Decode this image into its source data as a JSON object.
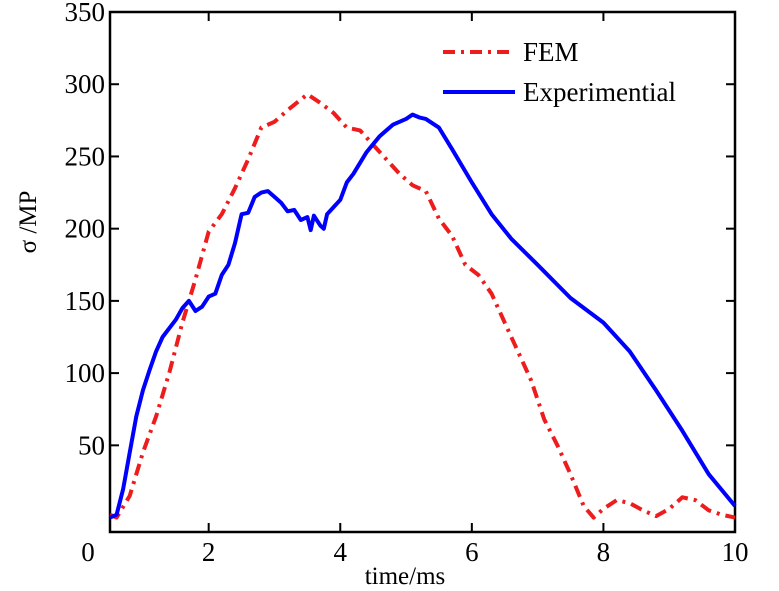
{
  "chart_data": {
    "type": "line",
    "xlabel": "time/ms",
    "ylabel": "σ /MP",
    "xlim": [
      0.5,
      10
    ],
    "ylim": [
      -10,
      350
    ],
    "x_ticks": [
      0,
      2,
      4,
      6,
      8,
      10
    ],
    "x_tick_labels": [
      "0",
      "2",
      "4",
      "6",
      "8",
      "10"
    ],
    "y_ticks": [
      50,
      100,
      150,
      200,
      250,
      300,
      350
    ],
    "y_tick_labels": [
      "50",
      "100",
      "150",
      "200",
      "250",
      "300",
      "350"
    ],
    "grid": false,
    "legend_position": "top-right",
    "series": [
      {
        "name": "FEM",
        "color": "#ee1c1c",
        "style": "dashdot",
        "points": [
          [
            0.5,
            2
          ],
          [
            0.6,
            0
          ],
          [
            0.8,
            15
          ],
          [
            1.0,
            45
          ],
          [
            1.2,
            70
          ],
          [
            1.4,
            100
          ],
          [
            1.6,
            135
          ],
          [
            1.8,
            165
          ],
          [
            2.0,
            198
          ],
          [
            2.2,
            210
          ],
          [
            2.4,
            228
          ],
          [
            2.6,
            248
          ],
          [
            2.8,
            270
          ],
          [
            3.0,
            274
          ],
          [
            3.2,
            282
          ],
          [
            3.5,
            293
          ],
          [
            3.7,
            287
          ],
          [
            3.9,
            280
          ],
          [
            4.1,
            270
          ],
          [
            4.3,
            268
          ],
          [
            4.5,
            258
          ],
          [
            4.7,
            248
          ],
          [
            4.9,
            238
          ],
          [
            5.1,
            230
          ],
          [
            5.3,
            226
          ],
          [
            5.5,
            207
          ],
          [
            5.7,
            195
          ],
          [
            5.9,
            175
          ],
          [
            6.1,
            168
          ],
          [
            6.3,
            155
          ],
          [
            6.5,
            135
          ],
          [
            6.7,
            115
          ],
          [
            6.9,
            95
          ],
          [
            7.1,
            68
          ],
          [
            7.3,
            50
          ],
          [
            7.5,
            30
          ],
          [
            7.7,
            8
          ],
          [
            7.85,
            0
          ],
          [
            8.0,
            6
          ],
          [
            8.2,
            12
          ],
          [
            8.4,
            10
          ],
          [
            8.6,
            5
          ],
          [
            8.8,
            1
          ],
          [
            9.0,
            6
          ],
          [
            9.2,
            14
          ],
          [
            9.4,
            12
          ],
          [
            9.6,
            5
          ],
          [
            9.8,
            2
          ],
          [
            10.0,
            0
          ]
        ]
      },
      {
        "name": "Experimential",
        "color": "#0000ff",
        "style": "solid",
        "points": [
          [
            0.5,
            0
          ],
          [
            0.6,
            2
          ],
          [
            0.7,
            20
          ],
          [
            0.8,
            45
          ],
          [
            0.9,
            70
          ],
          [
            1.0,
            88
          ],
          [
            1.1,
            102
          ],
          [
            1.2,
            115
          ],
          [
            1.3,
            125
          ],
          [
            1.5,
            137
          ],
          [
            1.6,
            145
          ],
          [
            1.7,
            150
          ],
          [
            1.8,
            143
          ],
          [
            1.9,
            146
          ],
          [
            2.0,
            153
          ],
          [
            2.1,
            155
          ],
          [
            2.2,
            168
          ],
          [
            2.3,
            175
          ],
          [
            2.4,
            190
          ],
          [
            2.5,
            210
          ],
          [
            2.6,
            211
          ],
          [
            2.7,
            222
          ],
          [
            2.8,
            225
          ],
          [
            2.9,
            226
          ],
          [
            3.0,
            222
          ],
          [
            3.1,
            218
          ],
          [
            3.2,
            212
          ],
          [
            3.3,
            213
          ],
          [
            3.4,
            206
          ],
          [
            3.5,
            208
          ],
          [
            3.55,
            199
          ],
          [
            3.6,
            209
          ],
          [
            3.7,
            202
          ],
          [
            3.75,
            200
          ],
          [
            3.8,
            210
          ],
          [
            3.9,
            215
          ],
          [
            4.0,
            220
          ],
          [
            4.1,
            232
          ],
          [
            4.2,
            238
          ],
          [
            4.4,
            253
          ],
          [
            4.6,
            264
          ],
          [
            4.8,
            272
          ],
          [
            5.0,
            276
          ],
          [
            5.1,
            279
          ],
          [
            5.2,
            277
          ],
          [
            5.3,
            276
          ],
          [
            5.5,
            270
          ],
          [
            5.7,
            255
          ],
          [
            6.0,
            232
          ],
          [
            6.3,
            210
          ],
          [
            6.6,
            193
          ],
          [
            7.0,
            175
          ],
          [
            7.5,
            152
          ],
          [
            8.0,
            135
          ],
          [
            8.4,
            115
          ],
          [
            8.8,
            88
          ],
          [
            9.2,
            60
          ],
          [
            9.6,
            30
          ],
          [
            10.0,
            8
          ]
        ]
      }
    ]
  }
}
